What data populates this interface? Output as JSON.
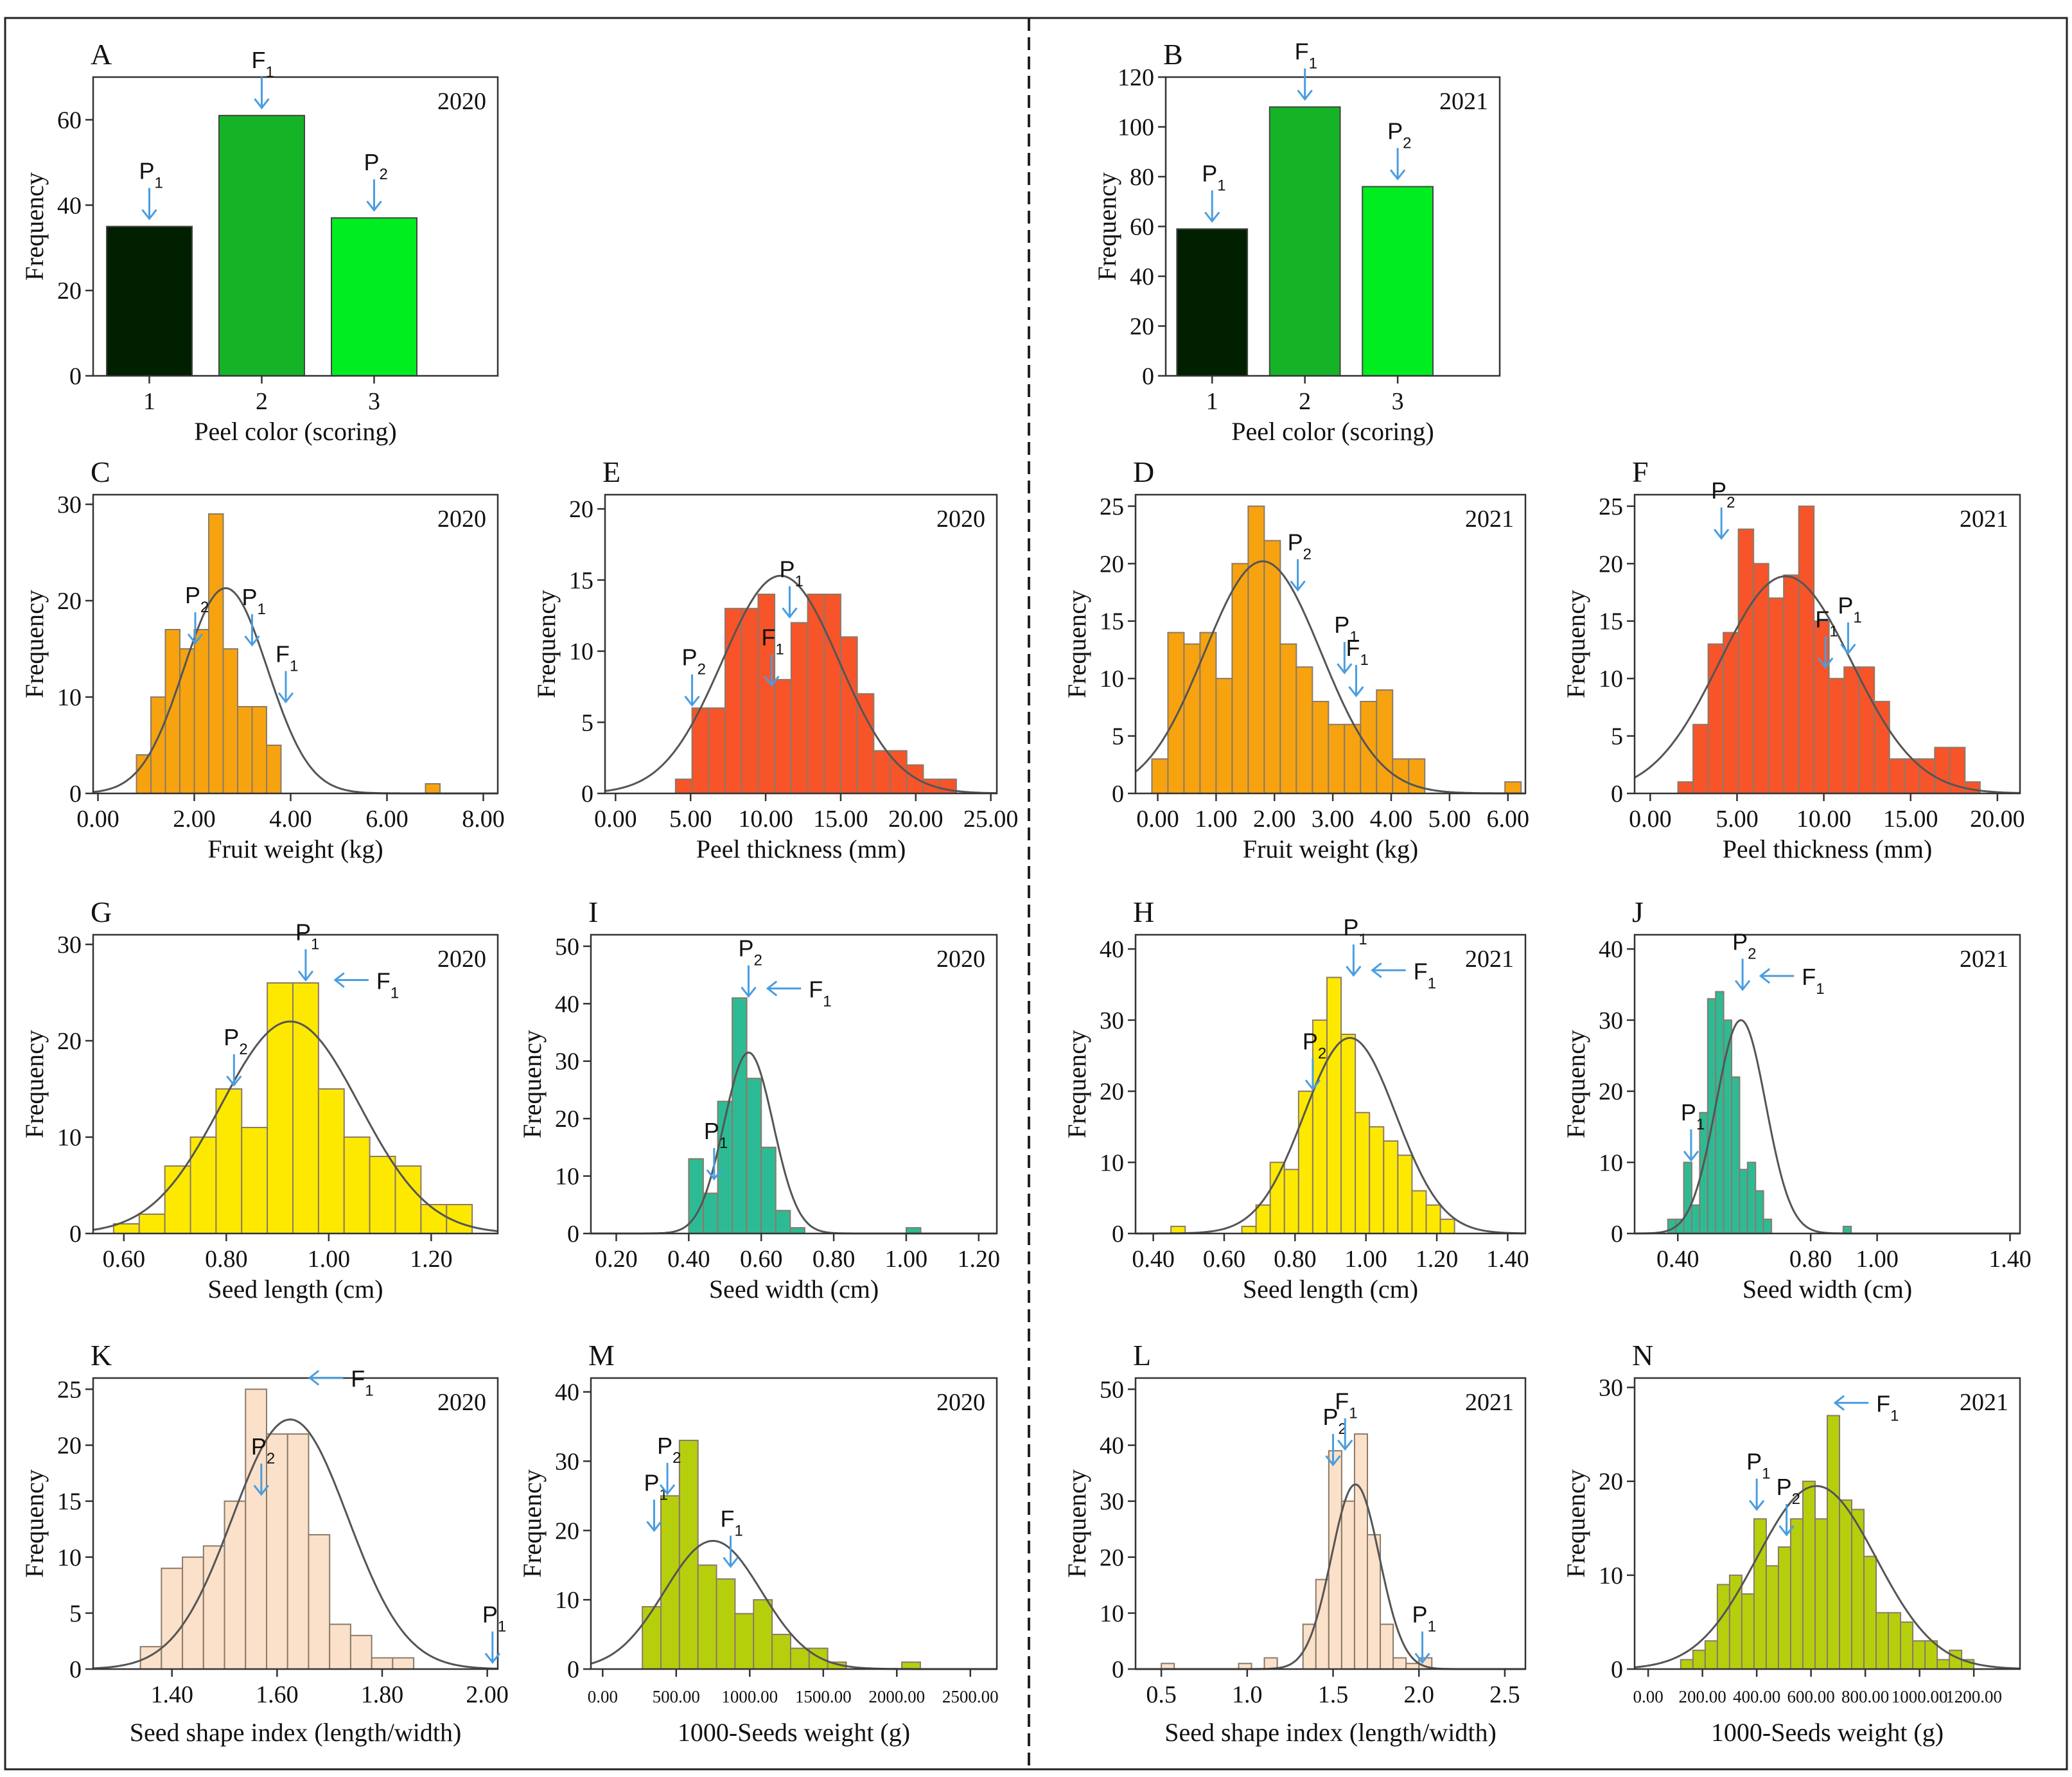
{
  "chart_data": [
    {
      "panel": "A",
      "type": "bar",
      "year": "2020",
      "ylabel": "Frequency",
      "xlabel": "Peel color (scoring)",
      "categories": [
        "1",
        "2",
        "3"
      ],
      "values": [
        35,
        61,
        37
      ],
      "colors": [
        "#002000",
        "#14b426",
        "#00ee20"
      ],
      "ylim": [
        0,
        70
      ],
      "yticks": [
        "0",
        "20",
        "40",
        "60"
      ],
      "annotations": [
        {
          "label": "P",
          "sub": "1",
          "at": "1"
        },
        {
          "label": "F",
          "sub": "1",
          "at": "2"
        },
        {
          "label": "P",
          "sub": "2",
          "at": "3"
        }
      ]
    },
    {
      "panel": "B",
      "type": "bar",
      "year": "2021",
      "ylabel": "Frequency",
      "xlabel": "Peel color (scoring)",
      "categories": [
        "1",
        "2",
        "3"
      ],
      "values": [
        59,
        108,
        76
      ],
      "colors": [
        "#002000",
        "#14b426",
        "#00ee20"
      ],
      "ylim": [
        0,
        120
      ],
      "yticks": [
        "0",
        "20",
        "40",
        "60",
        "80",
        "100",
        "120"
      ],
      "annotations": [
        {
          "label": "P",
          "sub": "1",
          "at": "1"
        },
        {
          "label": "F",
          "sub": "1",
          "at": "2"
        },
        {
          "label": "P",
          "sub": "2",
          "at": "3"
        }
      ]
    },
    {
      "panel": "C",
      "type": "bar",
      "year": "2020",
      "ylabel": "Frequency",
      "xlabel": "Fruit weight (kg)",
      "bin_start": 0.8,
      "bin_width": 0.3,
      "values": [
        4,
        10,
        17,
        15,
        17,
        29,
        15,
        9,
        9,
        5,
        0,
        0,
        0,
        0,
        0,
        0,
        0,
        0,
        0,
        0,
        1
      ],
      "xlim": [
        -0.1,
        8.3
      ],
      "ylim": [
        0,
        31
      ],
      "yticks": [
        "0",
        "10",
        "20",
        "30"
      ],
      "xticks": [
        "0.00",
        "2.00",
        "4.00",
        "6.00",
        "8.00"
      ],
      "fill": "#f7a30f",
      "normal_peak": 21.3,
      "normal_mean": 2.65,
      "normal_sd": 0.87,
      "annotations": [
        {
          "label": "P",
          "sub": "2",
          "x": 2.02,
          "y": 15.6
        },
        {
          "label": "P",
          "sub": "1",
          "x": 3.2,
          "y": 15.4
        },
        {
          "label": "F",
          "sub": "1",
          "x": 3.9,
          "y": 9.5
        }
      ]
    },
    {
      "panel": "E",
      "type": "bar",
      "year": "2020",
      "ylabel": "Frequency",
      "xlabel": "Peel thickness (mm)",
      "bin_start": 4.0,
      "bin_width": 1.1,
      "values": [
        1,
        6,
        6,
        13,
        13,
        14,
        8,
        12,
        14,
        14,
        11,
        7,
        3,
        3,
        2,
        1,
        1
      ],
      "xlim": [
        -0.7,
        25.4
      ],
      "ylim": [
        0,
        21
      ],
      "yticks": [
        "0",
        "5",
        "10",
        "15",
        "20"
      ],
      "xticks": [
        "0.00",
        "5.00",
        "10.00",
        "15.00",
        "20.00",
        "25.00"
      ],
      "fill": "#f7542a",
      "normal_peak": 15.3,
      "normal_mean": 11.0,
      "normal_sd": 3.9,
      "annotations": [
        {
          "label": "P",
          "sub": "2",
          "x": 5.1,
          "y": 6.2
        },
        {
          "label": "F",
          "sub": "1",
          "x": 10.4,
          "y": 7.6
        },
        {
          "label": "P",
          "sub": "1",
          "x": 11.6,
          "y": 12.4
        }
      ]
    },
    {
      "panel": "G",
      "type": "bar",
      "year": "2020",
      "ylabel": "Frequency",
      "xlabel": "Seed length (cm)",
      "bin_start": 0.58,
      "bin_width": 0.05,
      "values": [
        1,
        2,
        7,
        10,
        15,
        11,
        26,
        26,
        15,
        10,
        8,
        7,
        3,
        3
      ],
      "xlim": [
        0.54,
        1.33
      ],
      "ylim": [
        0,
        31
      ],
      "yticks": [
        "0",
        "10",
        "20",
        "30"
      ],
      "xticks": [
        "0.60",
        "0.80",
        "1.00",
        "1.20"
      ],
      "fill": "#fde900",
      "normal_peak": 22.0,
      "normal_mean": 0.925,
      "normal_sd": 0.135,
      "annotations": [
        {
          "label": "P",
          "sub": "2",
          "x": 0.815,
          "y": 15.4
        },
        {
          "label": "P",
          "sub": "1",
          "x": 0.955,
          "y": 26.3
        },
        {
          "label": "F",
          "sub": "1",
          "x": 1.0,
          "y": 24.3
        }
      ]
    },
    {
      "panel": "I",
      "type": "bar",
      "year": "2020",
      "ylabel": "Frequency",
      "xlabel": "Seed width (cm)",
      "bin_start": 0.4,
      "bin_width": 0.04,
      "values": [
        13,
        7,
        23,
        41,
        27,
        15,
        4,
        1,
        0,
        0,
        0,
        0,
        0,
        0,
        0,
        1
      ],
      "xlim": [
        0.13,
        1.25
      ],
      "ylim": [
        0,
        52
      ],
      "yticks": [
        "0",
        "10",
        "20",
        "30",
        "40",
        "50"
      ],
      "xticks": [
        "0.20",
        "0.40",
        "0.60",
        "0.80",
        "1.00",
        "1.20"
      ],
      "fill": "#2dbb95",
      "normal_peak": 31.5,
      "normal_mean": 0.565,
      "normal_sd": 0.068,
      "annotations": [
        {
          "label": "P",
          "sub": "1",
          "x": 0.47,
          "y": 9.5
        },
        {
          "label": "P",
          "sub": "2",
          "x": 0.565,
          "y": 41.3
        },
        {
          "label": "F",
          "sub": "1",
          "x": 0.6,
          "y": 39.3
        }
      ]
    },
    {
      "panel": "K",
      "type": "bar",
      "year": "2020",
      "ylabel": "Frequency",
      "xlabel": "Seed shape index (length/width)",
      "bin_start": 1.34,
      "bin_width": 0.04,
      "values": [
        2,
        9,
        10,
        11,
        15,
        25,
        21,
        21,
        12,
        4,
        3,
        1,
        1
      ],
      "xlim": [
        1.25,
        2.02
      ],
      "ylim": [
        0,
        26
      ],
      "yticks": [
        "0",
        "5",
        "10",
        "15",
        "20",
        "25"
      ],
      "xticks": [
        "1.40",
        "1.60",
        "1.80",
        "2.00"
      ],
      "fill": "#fbe1c9",
      "normal_peak": 22.3,
      "normal_mean": 1.625,
      "normal_sd": 0.11,
      "annotations": [
        {
          "label": "P",
          "sub": "2",
          "x": 1.57,
          "y": 15.6
        },
        {
          "label": "F",
          "sub": "1",
          "x": 1.65,
          "y": 24.3
        },
        {
          "label": "P",
          "sub": "1",
          "x": 2.01,
          "y": 0.6
        }
      ]
    },
    {
      "panel": "M",
      "type": "bar",
      "year": "2020",
      "ylabel": "Frequency",
      "xlabel": "1000-Seeds weight  (g)",
      "bin_start": 270,
      "bin_width": 126,
      "values": [
        9,
        25,
        33,
        15,
        13,
        8,
        10,
        5,
        3,
        3,
        1,
        0,
        0,
        0,
        1
      ],
      "xlim": [
        -80,
        2680
      ],
      "ylim": [
        0,
        42
      ],
      "yticks": [
        "0",
        "10",
        "20",
        "30",
        "40"
      ],
      "xticks": [
        "0.00",
        "500.00",
        "1000.00",
        "1500.00",
        "2000.00",
        "2500.00"
      ],
      "fill": "#b6cf0d",
      "normal_peak": 18.5,
      "normal_mean": 750,
      "normal_sd": 330,
      "annotations": [
        {
          "label": "P",
          "sub": "1",
          "x": 350,
          "y": 20.0
        },
        {
          "label": "P",
          "sub": "2",
          "x": 440,
          "y": 25.3
        },
        {
          "label": "F",
          "sub": "1",
          "x": 870,
          "y": 14.8
        }
      ]
    },
    {
      "panel": "D",
      "type": "bar",
      "year": "2021",
      "ylabel": "Frequency",
      "xlabel": "Fruit weight (kg)",
      "bin_start": -0.1,
      "bin_width": 0.275,
      "values": [
        3,
        14,
        13,
        14,
        10,
        20,
        25,
        22,
        13,
        11,
        8,
        6,
        6,
        8,
        9,
        3,
        3,
        0,
        0,
        0,
        0,
        0,
        1
      ],
      "xlim": [
        -0.38,
        6.3
      ],
      "ylim": [
        0,
        26
      ],
      "yticks": [
        "0",
        "5",
        "10",
        "15",
        "20",
        "25"
      ],
      "xticks": [
        "0.00",
        "1.00",
        "2.00",
        "3.00",
        "4.00",
        "5.00",
        "6.00"
      ],
      "fill": "#f7a30f",
      "normal_peak": 20.2,
      "normal_mean": 1.8,
      "normal_sd": 1.0,
      "annotations": [
        {
          "label": "P",
          "sub": "2",
          "x": 2.4,
          "y": 17.7
        },
        {
          "label": "P",
          "sub": "1",
          "x": 3.2,
          "y": 10.5
        },
        {
          "label": "F",
          "sub": "1",
          "x": 3.4,
          "y": 8.5
        }
      ]
    },
    {
      "panel": "F",
      "type": "bar",
      "year": "2021",
      "ylabel": "Frequency",
      "xlabel": "Peel thickness (mm)",
      "bin_start": 1.6,
      "bin_width": 0.87,
      "values": [
        1,
        6,
        13,
        14,
        23,
        20,
        17,
        19,
        25,
        15,
        10,
        11,
        11,
        8,
        3,
        3,
        3,
        4,
        4,
        1
      ],
      "xlim": [
        -0.9,
        21.3
      ],
      "ylim": [
        0,
        26
      ],
      "yticks": [
        "0",
        "5",
        "10",
        "15",
        "20",
        "25"
      ],
      "xticks": [
        "0.00",
        "5.00",
        "10.00",
        "15.00",
        "20.00"
      ],
      "fill": "#f7542a",
      "normal_peak": 18.9,
      "normal_mean": 7.8,
      "normal_sd": 3.8,
      "annotations": [
        {
          "label": "P",
          "sub": "2",
          "x": 4.1,
          "y": 22.2
        },
        {
          "label": "F",
          "sub": "1",
          "x": 10.1,
          "y": 11.0
        },
        {
          "label": "P",
          "sub": "1",
          "x": 11.4,
          "y": 12.2
        }
      ]
    },
    {
      "panel": "H",
      "type": "bar",
      "year": "2021",
      "ylabel": "Frequency",
      "xlabel": "Seed length (cm)",
      "bin_start": 0.45,
      "bin_width": 0.04,
      "values": [
        1,
        0,
        0,
        0,
        0,
        1,
        4,
        10,
        9,
        20,
        30,
        36,
        28,
        17,
        15,
        13,
        11,
        6,
        4,
        2
      ],
      "xlim": [
        0.35,
        1.45
      ],
      "ylim": [
        0,
        42
      ],
      "yticks": [
        "0",
        "10",
        "20",
        "30",
        "40"
      ],
      "xticks": [
        "0.40",
        "0.60",
        "0.80",
        "1.00",
        "1.20",
        "1.40"
      ],
      "fill": "#fde900",
      "normal_peak": 27.5,
      "normal_mean": 0.955,
      "normal_sd": 0.13,
      "annotations": [
        {
          "label": "P",
          "sub": "2",
          "x": 0.85,
          "y": 20.3
        },
        {
          "label": "P",
          "sub": "1",
          "x": 0.965,
          "y": 36.3
        },
        {
          "label": "F",
          "sub": "1",
          "x": 1.0,
          "y": 34.3
        }
      ]
    },
    {
      "panel": "J",
      "type": "bar",
      "year": "2021",
      "ylabel": "Frequency",
      "xlabel": "Seed width (cm)",
      "bin_start": 0.37,
      "bin_width": 0.024,
      "values": [
        2,
        2,
        10,
        4,
        17,
        33,
        34,
        30,
        22,
        9,
        10,
        6,
        2,
        0,
        0,
        0,
        0,
        0,
        0,
        0,
        0,
        0,
        1
      ],
      "xlim": [
        0.27,
        1.43
      ],
      "ylim": [
        0,
        42
      ],
      "yticks": [
        "0",
        "10",
        "20",
        "30",
        "40"
      ],
      "xticks": [
        "0.40",
        "0.80",
        "1.00",
        "1.40"
      ],
      "fill": "#2dbb95",
      "normal_peak": 30.0,
      "normal_mean": 0.59,
      "normal_sd": 0.075,
      "annotations": [
        {
          "label": "P",
          "sub": "1",
          "x": 0.44,
          "y": 10.3
        },
        {
          "label": "P",
          "sub": "2",
          "x": 0.595,
          "y": 34.3
        },
        {
          "label": "F",
          "sub": "1",
          "x": 0.63,
          "y": 33.5
        }
      ]
    },
    {
      "panel": "L",
      "type": "bar",
      "year": "2021",
      "ylabel": "Frequency",
      "xlabel": "Seed shape index (length/width)",
      "bin_start": 0.5,
      "bin_width": 0.075,
      "values": [
        1,
        0,
        0,
        0,
        0,
        0,
        1,
        0,
        2,
        0,
        0,
        8,
        16,
        39,
        30,
        42,
        24,
        8,
        2,
        1,
        2
      ],
      "xlim": [
        0.35,
        2.62
      ],
      "ylim": [
        0,
        52
      ],
      "yticks": [
        "0",
        "10",
        "20",
        "30",
        "40",
        "50"
      ],
      "xticks": [
        "0.5",
        "1.0",
        "1.5",
        "2.0",
        "2.5"
      ],
      "fill": "#fbe1c9",
      "normal_peak": 33.0,
      "normal_mean": 1.63,
      "normal_sd": 0.14,
      "annotations": [
        {
          "label": "P",
          "sub": "2",
          "x": 1.5,
          "y": 36.5
        },
        {
          "label": "F",
          "sub": "1",
          "x": 1.57,
          "y": 39.3
        },
        {
          "label": "P",
          "sub": "1",
          "x": 2.02,
          "y": 1.2
        }
      ]
    },
    {
      "panel": "N",
      "type": "bar",
      "year": "2021",
      "ylabel": "Frequency",
      "xlabel": "1000-Seeds weight (g)",
      "bin_start": 120,
      "bin_width": 45,
      "values": [
        1,
        2,
        3,
        9,
        10,
        8,
        16,
        11,
        13,
        16,
        20,
        16,
        27,
        18,
        17,
        12,
        6,
        6,
        5,
        3,
        3,
        1,
        2,
        1
      ],
      "xlim": [
        -50,
        1370
      ],
      "ylim": [
        0,
        31
      ],
      "yticks": [
        "0",
        "10",
        "20",
        "30"
      ],
      "xticks": [
        "0.00",
        "200.00",
        "400.00",
        "600.00",
        "800.00",
        "1000.00",
        "1200.00"
      ],
      "fill": "#b6cf0d",
      "normal_peak": 19.5,
      "normal_mean": 620,
      "normal_sd": 220,
      "annotations": [
        {
          "label": "P",
          "sub": "1",
          "x": 400,
          "y": 17.0
        },
        {
          "label": "P",
          "sub": "2",
          "x": 510,
          "y": 14.3
        },
        {
          "label": "F",
          "sub": "1",
          "x": 665,
          "y": 26.3
        }
      ]
    }
  ]
}
